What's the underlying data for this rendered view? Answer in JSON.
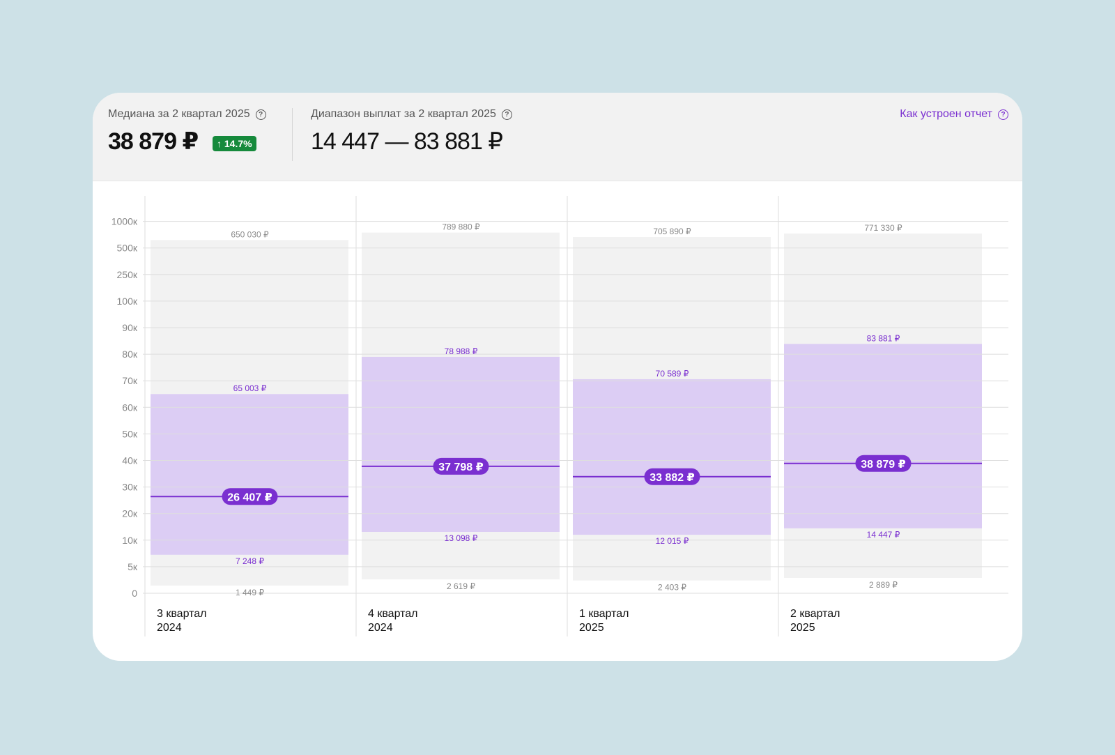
{
  "header": {
    "median_label": "Медиана за 2 квартал 2025",
    "median_value": "38 879 ₽",
    "growth_badge": "↑ 14.7%",
    "range_label": "Диапазон выплат за 2 квартал 2025",
    "range_value": "14 447 — 83 881 ₽",
    "report_link": "Как устроен отчет",
    "help_icon_glyph": "?"
  },
  "colors": {
    "page_bg": "#cde1e7",
    "card_bg": "#ffffff",
    "header_bg": "#f2f2f2",
    "accent": "#7a2fd0",
    "band_full": "#f2f2f2",
    "band_iqr": "#dccdf4",
    "badge_green": "#168a3c"
  },
  "chart_data": {
    "type": "range-band",
    "y_scale": "piecewise",
    "y_ticks": [
      "0",
      "5к",
      "10к",
      "20к",
      "30к",
      "40к",
      "50к",
      "60к",
      "70к",
      "80к",
      "90к",
      "100к",
      "250к",
      "500к",
      "1000к"
    ],
    "y_tick_values": [
      0,
      5000,
      10000,
      20000,
      30000,
      40000,
      50000,
      60000,
      70000,
      80000,
      90000,
      100000,
      250000,
      500000,
      1000000
    ],
    "categories": [
      {
        "line1": "3 квартал",
        "line2": "2024"
      },
      {
        "line1": "4 квартал",
        "line2": "2024"
      },
      {
        "line1": "1 квартал",
        "line2": "2025"
      },
      {
        "line1": "2 квартал",
        "line2": "2025"
      }
    ],
    "periods": [
      {
        "min": 1449,
        "min_label": "1 449 ₽",
        "low": 7248,
        "low_label": "7 248 ₽",
        "median": 26407,
        "median_label": "26 407 ₽",
        "high": 65003,
        "high_label": "65 003 ₽",
        "max": 650030,
        "max_label": "650 030 ₽"
      },
      {
        "min": 2619,
        "min_label": "2 619 ₽",
        "low": 13098,
        "low_label": "13 098 ₽",
        "median": 37798,
        "median_label": "37 798 ₽",
        "high": 78988,
        "high_label": "78 988 ₽",
        "max": 789880,
        "max_label": "789 880 ₽"
      },
      {
        "min": 2403,
        "min_label": "2 403 ₽",
        "low": 12015,
        "low_label": "12 015 ₽",
        "median": 33882,
        "median_label": "33 882 ₽",
        "high": 70589,
        "high_label": "70 589 ₽",
        "max": 705890,
        "max_label": "705 890 ₽"
      },
      {
        "min": 2889,
        "min_label": "2 889 ₽",
        "low": 14447,
        "low_label": "14 447 ₽",
        "median": 38879,
        "median_label": "38 879 ₽",
        "high": 83881,
        "high_label": "83 881 ₽",
        "max": 771330,
        "max_label": "771 330 ₽"
      }
    ]
  }
}
